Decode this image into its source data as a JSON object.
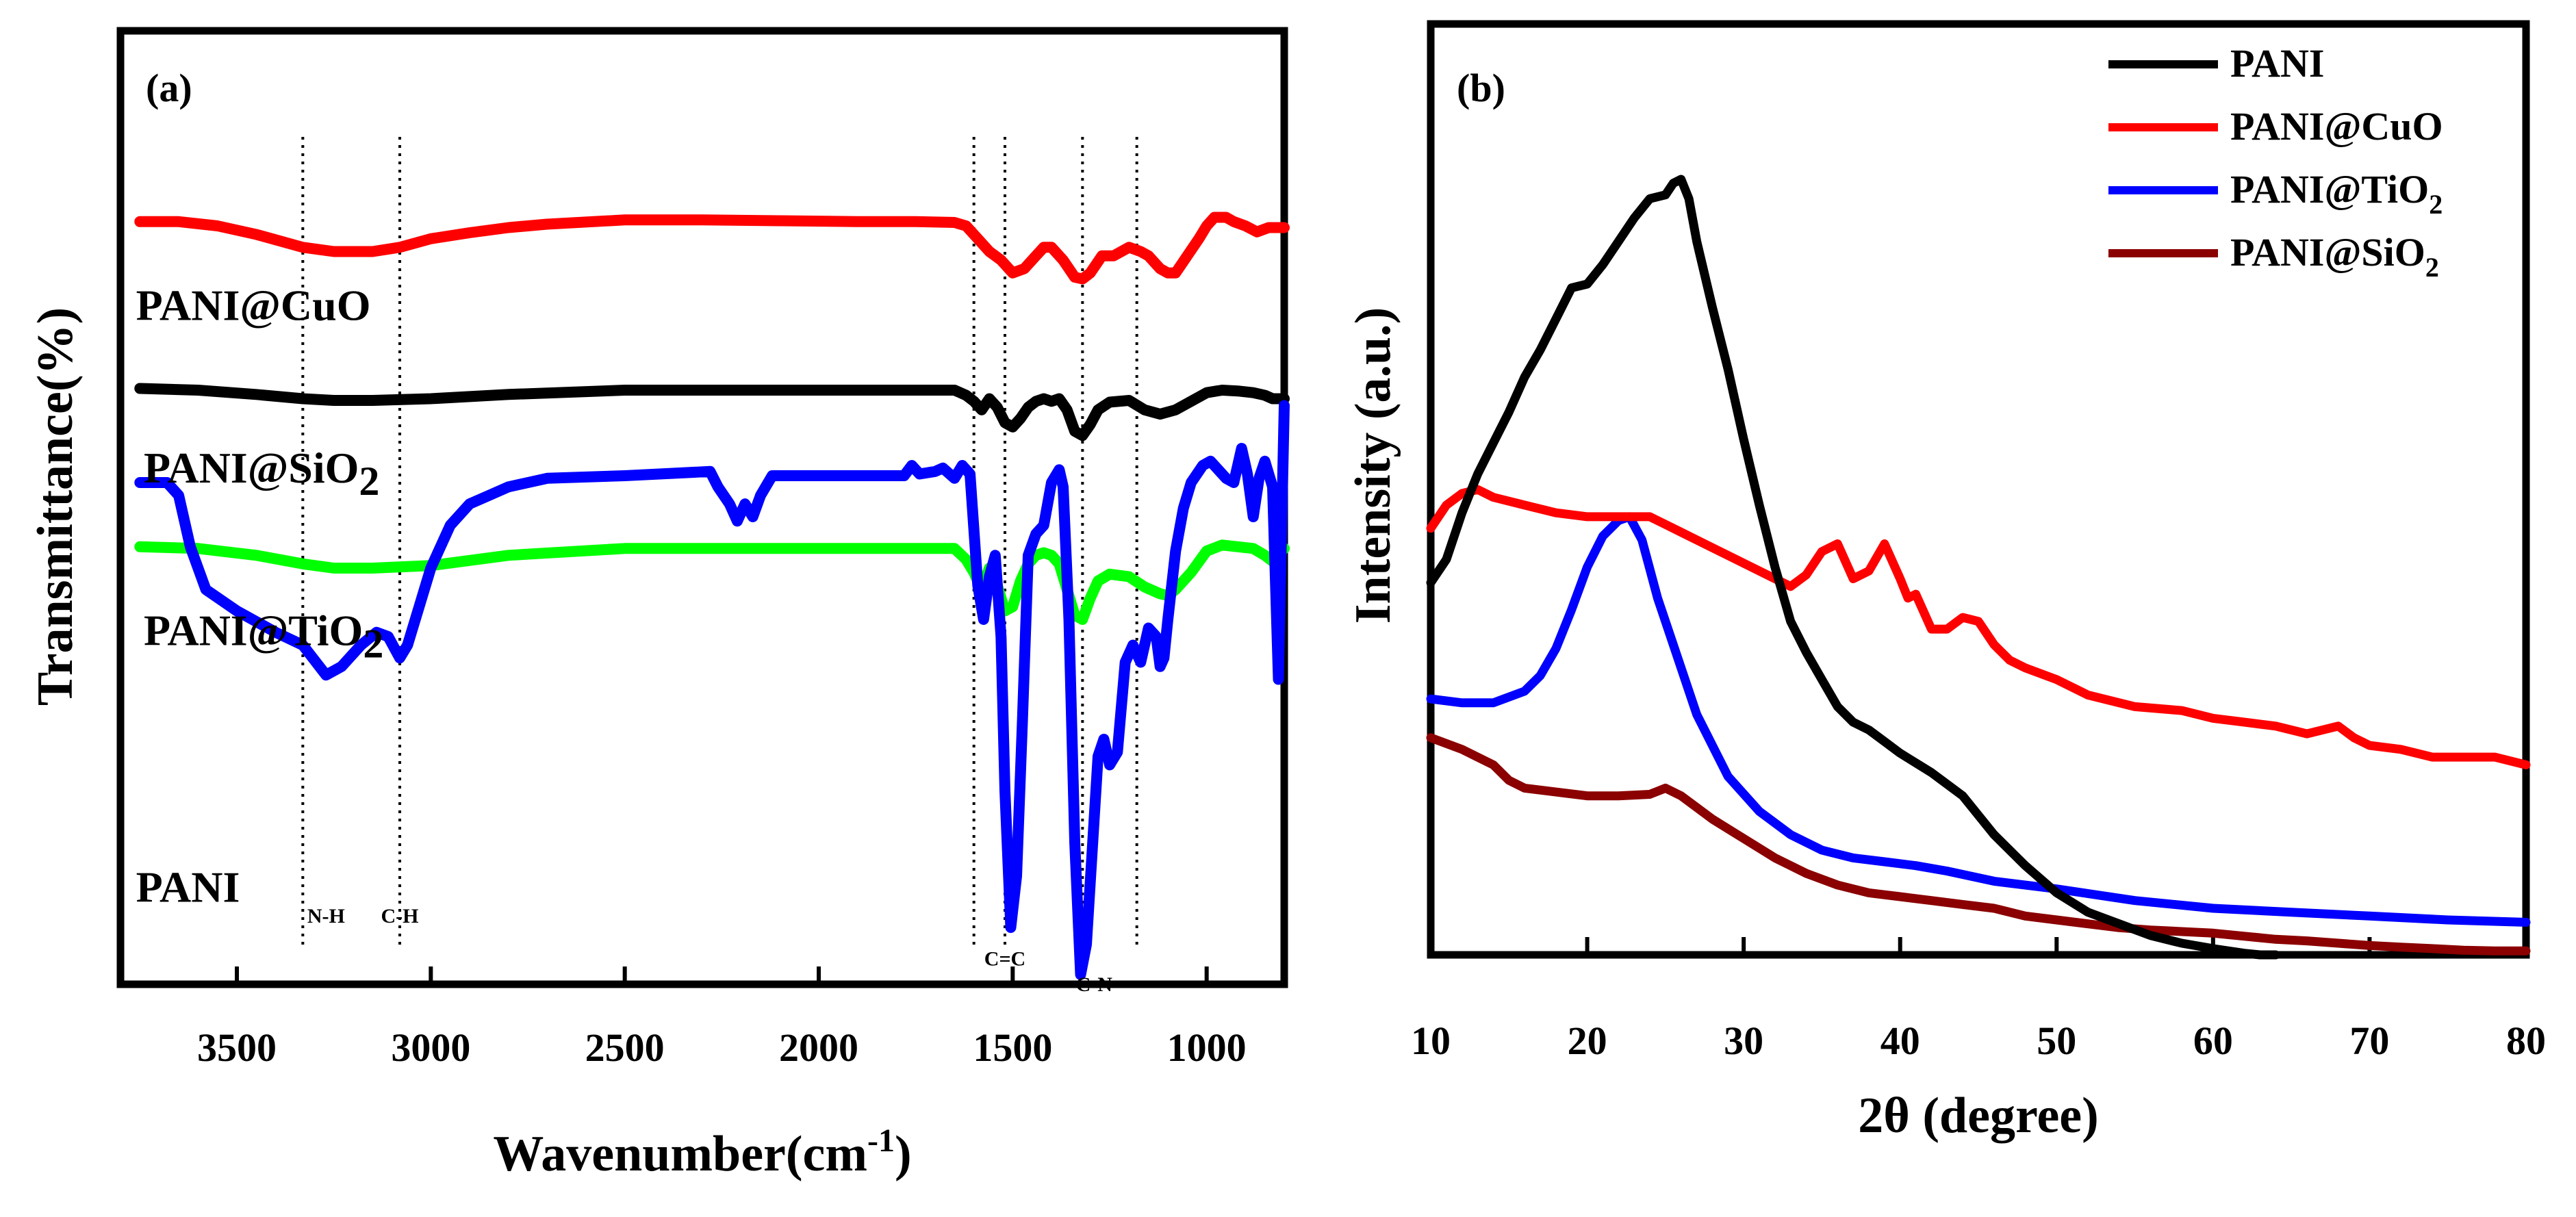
{
  "colors": {
    "pani": "#000000",
    "cuo": "#ff0000",
    "tio2_ir": "#00ff00",
    "pani_blue": "#0000ff",
    "tio2_xrd": "#0000ff",
    "sio2": "#8b0000"
  },
  "chart_data": [
    {
      "type": "line",
      "panel_label": "(a)",
      "xlabel": "Wavenumber(cm",
      "xlabel_sup": "-1",
      "xlabel_end": ")",
      "ylabel": "Transmittance(%)",
      "xlim": [
        3800,
        800
      ],
      "ylim": [
        0,
        100
      ],
      "x_ticks": [
        3500,
        3000,
        2500,
        2000,
        1500,
        1000
      ],
      "x_tick_labels": [
        "3500",
        "3000",
        "2500",
        "2000",
        "1500",
        "1000"
      ],
      "reference_lines": [
        3330,
        3080,
        1600,
        1520,
        1320,
        1180
      ],
      "peak_labels": [
        {
          "text": "N-H",
          "x": 3270,
          "y": 8
        },
        {
          "text": "C-H",
          "x": 3080,
          "y": 8
        },
        {
          "text": "C=C",
          "x": 1520,
          "y": 3
        },
        {
          "text": "C-N",
          "x": 1290,
          "y": 0
        }
      ],
      "series": [
        {
          "name": "PANI@CuO",
          "label_main": "PANI@CuO",
          "label_sub": "",
          "label_x": 3760,
          "label_y": 77,
          "color_key": "cuo",
          "x": [
            3750,
            3650,
            3550,
            3450,
            3330,
            3250,
            3150,
            3080,
            3000,
            2900,
            2800,
            2700,
            2500,
            2300,
            2100,
            1900,
            1750,
            1650,
            1620,
            1590,
            1560,
            1530,
            1500,
            1470,
            1440,
            1420,
            1400,
            1370,
            1340,
            1320,
            1300,
            1270,
            1240,
            1200,
            1170,
            1150,
            1120,
            1100,
            1080,
            1050,
            1020,
            1000,
            980,
            950,
            930,
            900,
            870,
            840,
            800
          ],
          "y": [
            88.5,
            88.5,
            88,
            87,
            85.5,
            85,
            85,
            85.5,
            86.5,
            87.2,
            87.8,
            88.2,
            88.7,
            88.7,
            88.6,
            88.5,
            88.5,
            88.4,
            88,
            86.5,
            85,
            84,
            82.5,
            83,
            84.5,
            85.5,
            85.5,
            84,
            82,
            81.8,
            82.5,
            84.5,
            84.5,
            85.5,
            85,
            84.5,
            83,
            82.5,
            82.5,
            84.5,
            86.5,
            88,
            89,
            89,
            88.5,
            88,
            87.3,
            87.8,
            87.8
          ]
        },
        {
          "name": "PANI@SiO2",
          "label_main": "PANI@SiO",
          "label_sub": "2",
          "label_x": 3740,
          "label_y": 58,
          "color_key": "pani",
          "x": [
            3750,
            3600,
            3450,
            3330,
            3250,
            3150,
            3000,
            2800,
            2500,
            2100,
            1800,
            1650,
            1620,
            1600,
            1580,
            1560,
            1540,
            1520,
            1500,
            1480,
            1460,
            1440,
            1420,
            1400,
            1380,
            1360,
            1340,
            1320,
            1300,
            1280,
            1250,
            1200,
            1160,
            1120,
            1080,
            1040,
            1000,
            960,
            920,
            880,
            850,
            830,
            800
          ],
          "y": [
            69,
            68.8,
            68.3,
            67.8,
            67.6,
            67.6,
            67.8,
            68.3,
            68.8,
            68.8,
            68.8,
            68.8,
            68.2,
            67.5,
            66.5,
            67.8,
            66.8,
            65,
            64.5,
            65.5,
            66.8,
            67.5,
            67.8,
            67.5,
            67.8,
            66.5,
            64,
            63.5,
            64.8,
            66.5,
            67.4,
            67.6,
            66.5,
            66,
            66.5,
            67.5,
            68.5,
            68.8,
            68.7,
            68.5,
            68.2,
            67.8,
            67.8
          ]
        },
        {
          "name": "PANI@TiO2",
          "label_main": "PANI@TiO",
          "label_sub": "2",
          "label_x": 3740,
          "label_y": 39,
          "color_key": "tio2_ir",
          "x": [
            3750,
            3600,
            3450,
            3330,
            3250,
            3150,
            3000,
            2800,
            2500,
            2100,
            1800,
            1650,
            1620,
            1600,
            1580,
            1560,
            1540,
            1520,
            1500,
            1480,
            1460,
            1440,
            1420,
            1400,
            1380,
            1360,
            1340,
            1320,
            1300,
            1280,
            1250,
            1200,
            1160,
            1120,
            1100,
            1080,
            1040,
            1000,
            960,
            920,
            880,
            850,
            830,
            800
          ],
          "y": [
            50.5,
            50.3,
            49.5,
            48.5,
            48,
            48,
            48.3,
            49.5,
            50.3,
            50.3,
            50.3,
            50.3,
            49,
            47.5,
            45.5,
            48,
            46,
            43,
            43.5,
            46.5,
            48.5,
            49.5,
            49.8,
            49.5,
            48.5,
            45.5,
            42.5,
            42,
            44.5,
            46.5,
            47.3,
            47,
            45.8,
            45,
            44.8,
            45.5,
            47.5,
            50,
            50.7,
            50.5,
            50.3,
            49.5,
            48.8,
            50.3
          ]
        },
        {
          "name": "PANI",
          "label_main": "PANI",
          "label_sub": "",
          "label_x": 3760,
          "label_y": 9,
          "color_key": "pani_blue",
          "x": [
            3750,
            3680,
            3650,
            3620,
            3580,
            3500,
            3400,
            3330,
            3270,
            3230,
            3180,
            3140,
            3110,
            3080,
            3060,
            3030,
            3000,
            2950,
            2900,
            2850,
            2800,
            2700,
            2500,
            2280,
            2260,
            2230,
            2210,
            2190,
            2170,
            2150,
            2120,
            2000,
            1900,
            1780,
            1760,
            1740,
            1700,
            1680,
            1650,
            1630,
            1610,
            1590,
            1575,
            1560,
            1545,
            1530,
            1520,
            1505,
            1490,
            1475,
            1460,
            1440,
            1420,
            1400,
            1380,
            1370,
            1355,
            1340,
            1325,
            1310,
            1295,
            1280,
            1265,
            1250,
            1230,
            1210,
            1190,
            1170,
            1150,
            1130,
            1120,
            1110,
            1100,
            1080,
            1060,
            1040,
            1010,
            990,
            970,
            950,
            930,
            910,
            895,
            880,
            865,
            850,
            830,
            815,
            800
          ],
          "y": [
            58,
            58,
            56.5,
            50.5,
            45.5,
            43,
            40.5,
            39,
            35.5,
            36.5,
            39,
            40.5,
            40,
            37.5,
            39,
            43.5,
            48,
            53,
            55.5,
            56.5,
            57.5,
            58.5,
            58.8,
            59.3,
            57.5,
            55.5,
            53.5,
            55.5,
            54,
            56.5,
            58.8,
            58.8,
            58.8,
            58.8,
            60,
            59,
            59.3,
            59.7,
            58.5,
            60,
            59,
            46,
            42,
            47,
            49.5,
            40,
            22,
            6,
            12,
            30,
            49.5,
            52,
            53,
            58,
            59.5,
            57.5,
            42,
            16,
            0.5,
            4,
            15,
            26,
            28,
            25,
            26.5,
            37,
            39,
            37,
            41,
            40,
            36.5,
            37.5,
            42,
            50,
            55,
            58,
            60,
            60.5,
            59.5,
            58.5,
            58,
            62,
            59,
            54,
            58.5,
            60.5,
            57.5,
            35,
            67
          ]
        }
      ]
    },
    {
      "type": "line",
      "panel_label": "(b)",
      "xlabel": "2θ (degree)",
      "ylabel": "Intensity (a.u.)",
      "xlim": [
        10,
        80
      ],
      "ylim": [
        0,
        100
      ],
      "x_ticks": [
        10,
        20,
        30,
        40,
        50,
        60,
        70,
        80
      ],
      "x_tick_labels": [
        "10",
        "20",
        "30",
        "40",
        "50",
        "60",
        "70",
        "80"
      ],
      "legend_position": "top-right",
      "legend": [
        {
          "main": "PANI",
          "sub": "",
          "color_key": "pani"
        },
        {
          "main": "PANI@CuO",
          "sub": "",
          "color_key": "cuo"
        },
        {
          "main": "PANI@TiO",
          "sub": "2",
          "color_key": "tio2_xrd"
        },
        {
          "main": "PANI@SiO",
          "sub": "2",
          "color_key": "sio2"
        }
      ],
      "series": [
        {
          "name": "PANI@SiO2",
          "color_key": "sio2",
          "x": [
            10,
            12,
            14,
            15,
            16,
            18,
            20,
            22,
            24,
            25,
            26,
            27,
            28,
            30,
            32,
            34,
            36,
            38,
            40,
            42,
            44,
            46,
            48,
            50,
            52,
            54,
            56,
            58,
            60,
            62,
            64,
            66,
            68,
            70,
            72,
            74,
            76,
            78,
            80
          ],
          "y": [
            28,
            26.5,
            24.5,
            22.5,
            21.5,
            21,
            20.5,
            20.5,
            20.7,
            21.5,
            20.5,
            19,
            17.5,
            15,
            12.5,
            10.5,
            9,
            8,
            7.5,
            7,
            6.5,
            6,
            5,
            4.5,
            4,
            3.5,
            3.2,
            3,
            2.8,
            2.4,
            2,
            1.8,
            1.5,
            1.2,
            1,
            0.8,
            0.6,
            0.5,
            0.5
          ]
        },
        {
          "name": "PANI@TiO2",
          "color_key": "tio2_xrd",
          "x": [
            10,
            12,
            14,
            16,
            17,
            18,
            19,
            20,
            21,
            22,
            22.7,
            23.5,
            24.5,
            25.5,
            27,
            29,
            31,
            33,
            35,
            37,
            39,
            41,
            43,
            46,
            50,
            55,
            60,
            65,
            70,
            75,
            80
          ],
          "y": [
            33,
            32.5,
            32.5,
            34,
            36,
            39.5,
            44.5,
            50,
            54,
            56,
            56.5,
            53.5,
            46,
            40,
            31,
            23,
            18.5,
            15.5,
            13.5,
            12.5,
            12,
            11.5,
            10.8,
            9.5,
            8.5,
            7,
            6,
            5.5,
            5,
            4.5,
            4.2
          ]
        },
        {
          "name": "PANI@CuO",
          "color_key": "cuo",
          "x": [
            10,
            11,
            12,
            13,
            14,
            16,
            18,
            20,
            22,
            24,
            25,
            26,
            28,
            30,
            32,
            33,
            34,
            35,
            36,
            37,
            38,
            39,
            40,
            40.5,
            41,
            42,
            43,
            44,
            45,
            46,
            47,
            48,
            50,
            52,
            55,
            58,
            60,
            62,
            64,
            66,
            68,
            69,
            70,
            72,
            74,
            76,
            78,
            80
          ],
          "y": [
            55,
            58,
            59.5,
            60,
            59,
            58,
            57,
            56.5,
            56.5,
            56.5,
            55.5,
            54.5,
            52.5,
            50.5,
            48.5,
            47.5,
            49,
            52,
            53,
            48.5,
            49.5,
            53,
            48.5,
            46,
            46.5,
            42,
            42,
            43.5,
            43,
            40,
            38,
            37,
            35.5,
            33.5,
            32,
            31.5,
            30.5,
            30,
            29.5,
            28.5,
            29.5,
            28,
            27,
            26.5,
            25.5,
            25.5,
            25.5,
            24.5
          ]
        },
        {
          "name": "PANI",
          "color_key": "pani",
          "x": [
            10,
            11,
            12,
            13,
            14,
            15,
            16,
            17,
            18,
            19,
            20,
            21,
            22,
            23,
            24,
            25,
            25.5,
            26,
            26.5,
            27,
            28,
            29,
            30,
            31,
            32,
            33,
            34,
            35,
            36,
            37,
            38,
            39,
            40,
            42,
            44,
            46,
            48,
            50,
            52,
            54,
            56,
            58,
            60,
            61,
            62,
            63,
            64
          ],
          "y": [
            48,
            51,
            57,
            62,
            66,
            70,
            74.5,
            78,
            82,
            86,
            86.5,
            89,
            92,
            95,
            97.5,
            98,
            99.5,
            100,
            97.5,
            92,
            83.5,
            75.5,
            66.5,
            58,
            50,
            43,
            39,
            35.5,
            32,
            30,
            29,
            27.5,
            26,
            23.5,
            20.5,
            15.5,
            11.5,
            8,
            5.5,
            4,
            2.5,
            1.5,
            0.8,
            0.5,
            0.2,
            0,
            0
          ]
        }
      ]
    }
  ]
}
